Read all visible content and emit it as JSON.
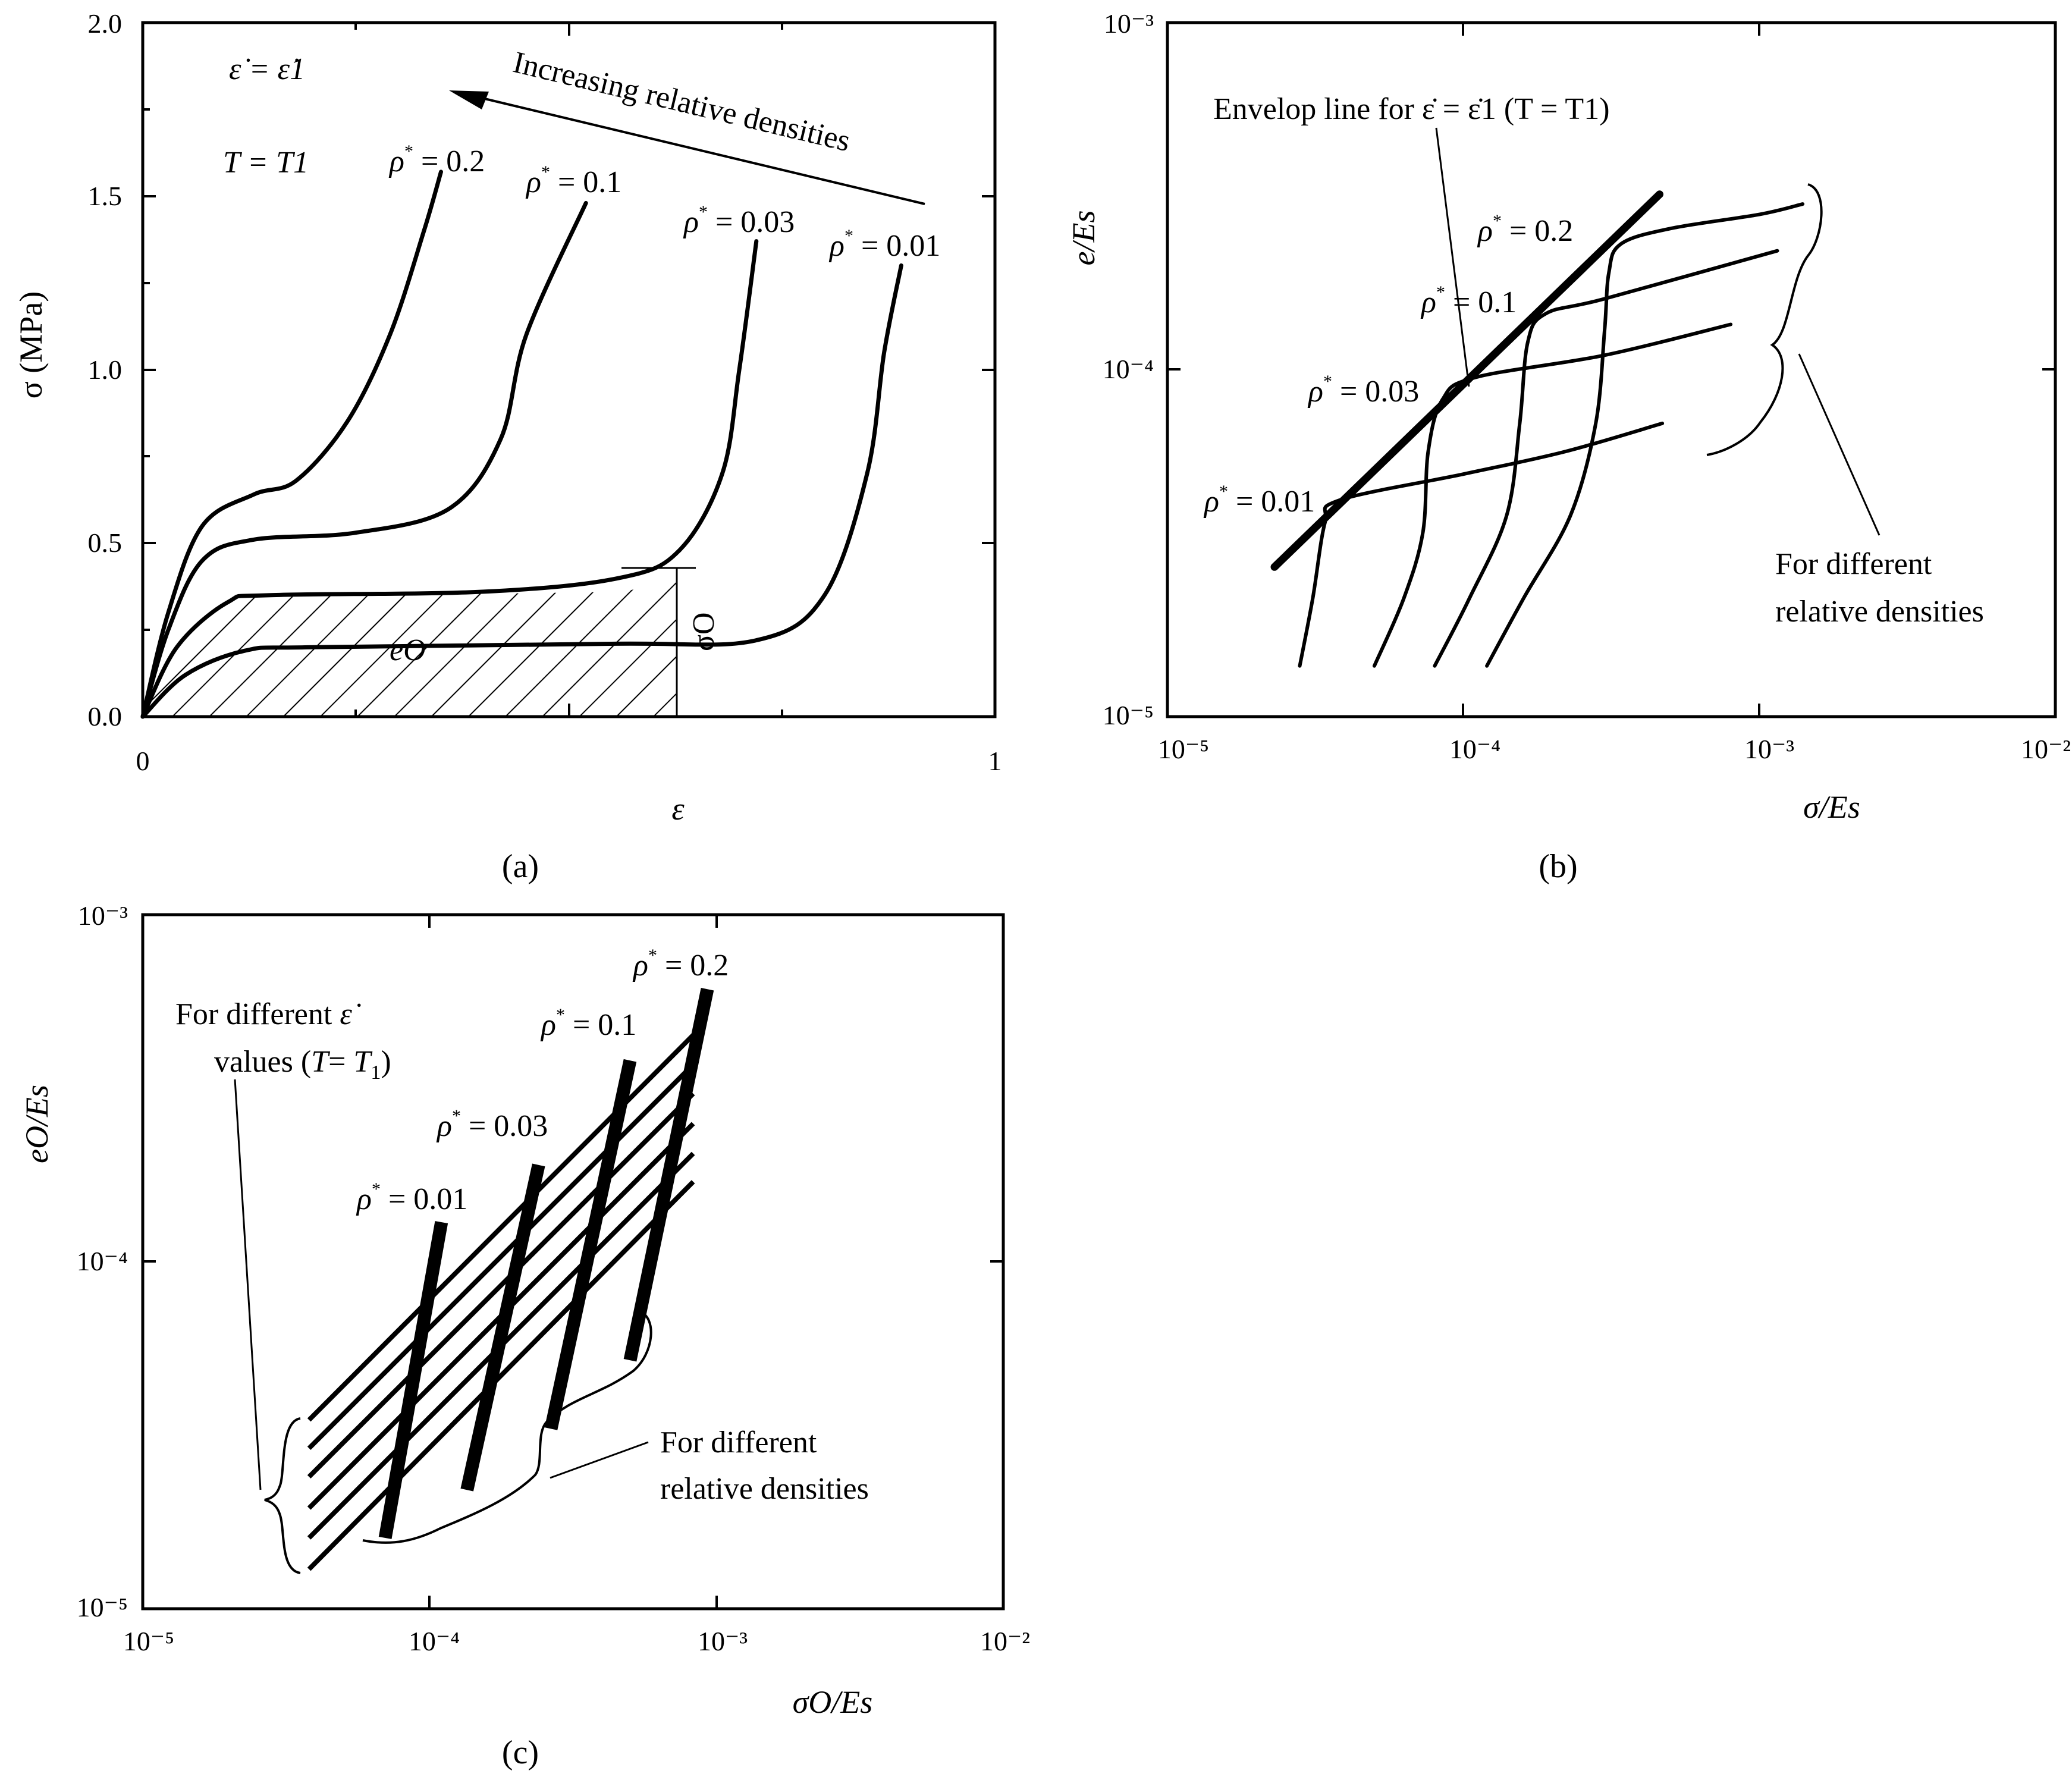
{
  "colors": {
    "ink": "#000000",
    "background": "#ffffff"
  },
  "chart_data": [
    {
      "panel": "(a)",
      "type": "line",
      "xlabel": "ε",
      "ylabel": "σ (MPa)",
      "xlim": [
        0,
        1
      ],
      "ylim": [
        0,
        2.0
      ],
      "xticks": [
        "0",
        "1"
      ],
      "yticks": [
        "0.0",
        "0.5",
        "1.0",
        "1.5",
        "2.0"
      ],
      "annotations": {
        "rate": "ε̇ = ε̇1",
        "temperature": "T = T1",
        "arrow": "Increasing relative densities",
        "eo": "eO",
        "sigma_o": "σO"
      },
      "series": [
        {
          "name": "ρ* = 0.2",
          "points": [
            [
              0,
              0
            ],
            [
              0.03,
              0.3
            ],
            [
              0.07,
              0.55
            ],
            [
              0.13,
              0.64
            ],
            [
              0.18,
              0.68
            ],
            [
              0.24,
              0.85
            ],
            [
              0.29,
              1.1
            ],
            [
              0.33,
              1.4
            ],
            [
              0.35,
              1.57
            ]
          ]
        },
        {
          "name": "ρ* = 0.1",
          "points": [
            [
              0,
              0
            ],
            [
              0.03,
              0.25
            ],
            [
              0.07,
              0.45
            ],
            [
              0.13,
              0.51
            ],
            [
              0.25,
              0.53
            ],
            [
              0.36,
              0.6
            ],
            [
              0.42,
              0.8
            ],
            [
              0.45,
              1.1
            ],
            [
              0.52,
              1.48
            ]
          ]
        },
        {
          "name": "ρ* = 0.03",
          "points": [
            [
              0,
              0
            ],
            [
              0.04,
              0.2
            ],
            [
              0.1,
              0.33
            ],
            [
              0.15,
              0.35
            ],
            [
              0.4,
              0.36
            ],
            [
              0.56,
              0.4
            ],
            [
              0.63,
              0.48
            ],
            [
              0.68,
              0.7
            ],
            [
              0.7,
              1.0
            ],
            [
              0.72,
              1.37
            ]
          ]
        },
        {
          "name": "ρ* = 0.01",
          "points": [
            [
              0,
              0
            ],
            [
              0.05,
              0.12
            ],
            [
              0.12,
              0.19
            ],
            [
              0.2,
              0.2
            ],
            [
              0.55,
              0.21
            ],
            [
              0.72,
              0.22
            ],
            [
              0.8,
              0.35
            ],
            [
              0.85,
              0.7
            ],
            [
              0.87,
              1.05
            ],
            [
              0.89,
              1.3
            ]
          ]
        }
      ]
    },
    {
      "panel": "(b)",
      "type": "line",
      "xlabel": "σ/Es",
      "ylabel": "e/Es",
      "x_scale": "log",
      "y_scale": "log",
      "xlim": [
        1e-05,
        0.01
      ],
      "ylim": [
        1e-05,
        0.001
      ],
      "xticks": [
        "10⁻⁵",
        "10⁻⁴",
        "10⁻³",
        "10⁻²"
      ],
      "yticks": [
        "10⁻⁵",
        "10⁻⁴",
        "10⁻³"
      ],
      "annotations": {
        "envelope": "Envelop line for ε̇ = ε̇1 (T = T1)",
        "densities": "For different relative densities"
      },
      "series": [
        {
          "name": "ρ* = 0.01",
          "points": [
            [
              2.8e-05,
              1.4e-05
            ],
            [
              3.1e-05,
              2.2e-05
            ],
            [
              3.4e-05,
              3.6e-05
            ],
            [
              3.8e-05,
              4.2e-05
            ],
            [
              0.0001,
              5e-05
            ],
            [
              0.00022,
              5.8e-05
            ],
            [
              0.00047,
              7e-05
            ]
          ]
        },
        {
          "name": "ρ* = 0.03",
          "points": [
            [
              5e-05,
              1.4e-05
            ],
            [
              6.3e-05,
              2.2e-05
            ],
            [
              7.3e-05,
              3.4e-05
            ],
            [
              7.6e-05,
              5.8e-05
            ],
            [
              8.5e-05,
              8.2e-05
            ],
            [
              0.00011,
              9.5e-05
            ],
            [
              0.0003,
              0.00011
            ],
            [
              0.0008,
              0.000135
            ]
          ]
        },
        {
          "name": "ρ* = 0.1",
          "points": [
            [
              8e-05,
              1.4e-05
            ],
            [
              0.000105,
              2.2e-05
            ],
            [
              0.00014,
              3.8e-05
            ],
            [
              0.000155,
              7e-05
            ],
            [
              0.000165,
              0.00012
            ],
            [
              0.00019,
              0.000145
            ],
            [
              0.0003,
              0.00016
            ],
            [
              0.00115,
              0.00022
            ]
          ]
        },
        {
          "name": "ρ* = 0.2",
          "points": [
            [
              0.00012,
              1.4e-05
            ],
            [
              0.00016,
              2.2e-05
            ],
            [
              0.00023,
              3.8e-05
            ],
            [
              0.00028,
              7e-05
            ],
            [
              0.0003,
              0.00013
            ],
            [
              0.00031,
              0.00019
            ],
            [
              0.00034,
              0.00023
            ],
            [
              0.0005,
              0.000255
            ],
            [
              0.001,
              0.00028
            ],
            [
              0.0014,
              0.0003
            ]
          ]
        },
        {
          "name": "envelope",
          "points": [
            [
              2.3e-05,
              2.7e-05
            ],
            [
              0.00046,
              0.00032
            ]
          ]
        }
      ]
    },
    {
      "panel": "(c)",
      "type": "line",
      "xlabel": "σO/Es",
      "ylabel": "eO/Es",
      "x_scale": "log",
      "y_scale": "log",
      "xlim": [
        1e-05,
        0.01
      ],
      "ylim": [
        1e-05,
        0.001
      ],
      "xticks": [
        "10⁻⁵",
        "10⁻⁴",
        "10⁻³",
        "10⁻²"
      ],
      "yticks": [
        "10⁻⁵",
        "10⁻⁴",
        "10⁻³"
      ],
      "annotations": {
        "rates": "For different ε̇ values (T = T1)",
        "densities": "For different relative densities"
      },
      "density_lines": [
        {
          "name": "ρ* = 0.01",
          "x": [
            7e-05,
            0.00011
          ],
          "y": [
            1.6e-05,
            0.00013
          ]
        },
        {
          "name": "ρ* = 0.03",
          "x": [
            0.000135,
            0.00024
          ],
          "y": [
            2.2e-05,
            0.00019
          ]
        },
        {
          "name": "ρ* = 0.1",
          "x": [
            0.000265,
            0.0005
          ],
          "y": [
            3.3e-05,
            0.00038
          ]
        },
        {
          "name": "ρ* = 0.2",
          "x": [
            0.0005,
            0.00093
          ],
          "y": [
            5.2e-05,
            0.00061
          ]
        }
      ],
      "rate_lines": [
        {
          "x": [
            3.8e-05,
            0.00083
          ],
          "y": [
            3.5e-05,
            0.00045
          ]
        },
        {
          "x": [
            3.8e-05,
            0.00083
          ],
          "y": [
            2.9e-05,
            0.00037
          ]
        },
        {
          "x": [
            3.8e-05,
            0.00083
          ],
          "y": [
            2.4e-05,
            0.000305
          ]
        },
        {
          "x": [
            3.8e-05,
            0.00083
          ],
          "y": [
            1.95e-05,
            0.00025
          ]
        },
        {
          "x": [
            3.8e-05,
            0.00083
          ],
          "y": [
            1.6e-05,
            0.000205
          ]
        },
        {
          "x": [
            3.8e-05,
            0.00083
          ],
          "y": [
            1.3e-05,
            0.00017
          ]
        }
      ]
    }
  ],
  "captions": {
    "a": "(a)",
    "b": "(b)",
    "c": "(c)"
  },
  "labels": {
    "rho": "ρ",
    "star": "*",
    "eq": " = ",
    "r02": "0.2",
    "r01": "0.1",
    "r003": "0.03",
    "r001": "0.01"
  }
}
